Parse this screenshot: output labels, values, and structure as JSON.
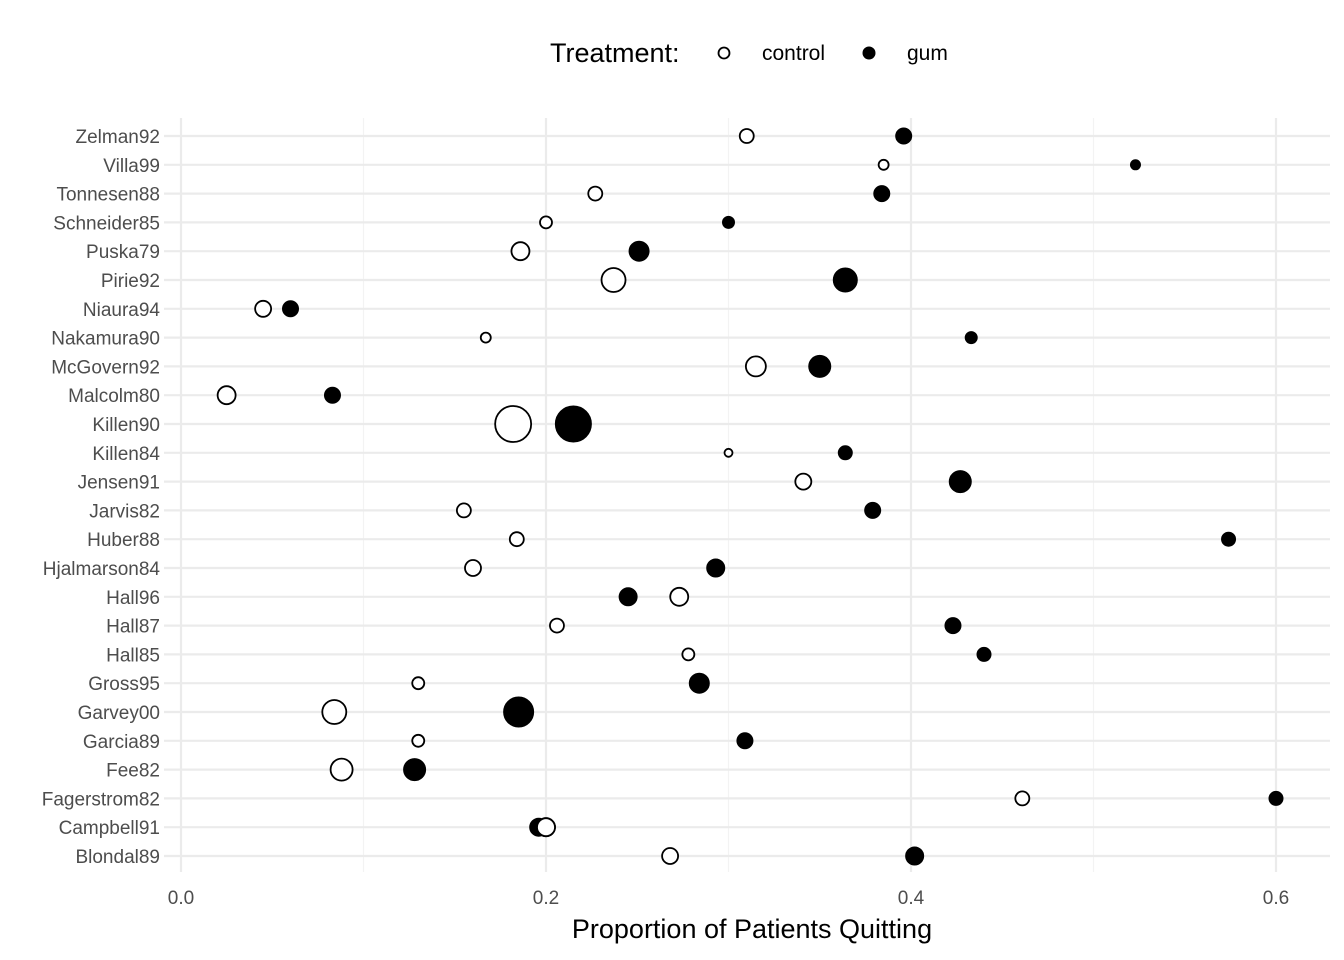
{
  "chart_data": {
    "type": "scatter",
    "xlabel": "Proportion of Patients Quitting",
    "ylabel": "",
    "xlim": [
      0,
      0.63
    ],
    "x_ticks": [
      0,
      0.2,
      0.4,
      0.6
    ],
    "x_tick_labels": [
      "0.0",
      "0.2",
      "0.4",
      "0.6"
    ],
    "grid": true,
    "legend": {
      "title": "Treatment:",
      "position": "top",
      "entries": [
        {
          "label": "control",
          "style": "open"
        },
        {
          "label": "gum",
          "style": "filled"
        }
      ]
    },
    "point_size_encodes": "study sample size (relative)",
    "categories": [
      "Blondal89",
      "Campbell91",
      "Fagerstrom82",
      "Fee82",
      "Garcia89",
      "Garvey00",
      "Gross95",
      "Hall85",
      "Hall87",
      "Hall96",
      "Hjalmarson84",
      "Huber88",
      "Jarvis82",
      "Jensen91",
      "Killen84",
      "Killen90",
      "Malcolm80",
      "McGovern92",
      "Nakamura90",
      "Niaura94",
      "Pirie92",
      "Puska79",
      "Schneider85",
      "Tonnesen88",
      "Villa99",
      "Zelman92"
    ],
    "series": [
      {
        "name": "control",
        "values": [
          0.268,
          0.2,
          0.461,
          0.088,
          0.13,
          0.084,
          0.13,
          0.278,
          0.206,
          0.273,
          0.16,
          0.184,
          0.155,
          0.341,
          0.3,
          0.182,
          0.025,
          0.315,
          0.167,
          0.045,
          0.237,
          0.186,
          0.2,
          0.227,
          0.385,
          0.31
        ],
        "relative_size": [
          8,
          9,
          7,
          11,
          6,
          12,
          6,
          6,
          7,
          9,
          8,
          7,
          7,
          8,
          4,
          18,
          9,
          10,
          5,
          8,
          12,
          9,
          6,
          7,
          5,
          7
        ]
      },
      {
        "name": "gum",
        "values": [
          0.402,
          0.196,
          0.6,
          0.128,
          0.309,
          0.185,
          0.284,
          0.44,
          0.423,
          0.245,
          0.293,
          0.574,
          0.379,
          0.427,
          0.364,
          0.215,
          0.083,
          0.35,
          0.433,
          0.06,
          0.364,
          0.251,
          0.3,
          0.384,
          0.523,
          0.396
        ]
      }
    ],
    "gum_relative_size": [
      9,
      9,
      7,
      11,
      8,
      15,
      10,
      7,
      8,
      9,
      9,
      7,
      8,
      11,
      7,
      18,
      8,
      11,
      6,
      8,
      12,
      10,
      6,
      8,
      5,
      8
    ]
  }
}
